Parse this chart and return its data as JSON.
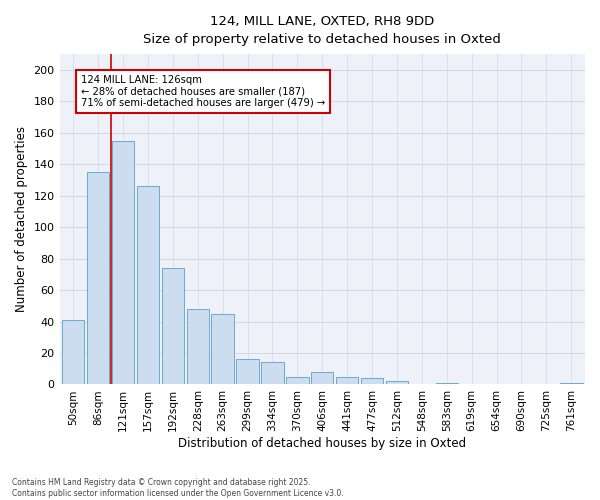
{
  "title_line1": "124, MILL LANE, OXTED, RH8 9DD",
  "title_line2": "Size of property relative to detached houses in Oxted",
  "xlabel": "Distribution of detached houses by size in Oxted",
  "ylabel": "Number of detached properties",
  "categories": [
    "50sqm",
    "86sqm",
    "121sqm",
    "157sqm",
    "192sqm",
    "228sqm",
    "263sqm",
    "299sqm",
    "334sqm",
    "370sqm",
    "406sqm",
    "441sqm",
    "477sqm",
    "512sqm",
    "548sqm",
    "583sqm",
    "619sqm",
    "654sqm",
    "690sqm",
    "725sqm",
    "761sqm"
  ],
  "values": [
    41,
    135,
    155,
    126,
    74,
    48,
    45,
    16,
    14,
    5,
    8,
    5,
    4,
    2,
    0,
    1,
    0,
    0,
    0,
    0,
    1
  ],
  "bar_color": "#ccddf0",
  "bar_edge_color": "#6aaad4",
  "vline_x": 1.5,
  "annotation_text_line1": "124 MILL LANE: 126sqm",
  "annotation_text_line2": "← 28% of detached houses are smaller (187)",
  "annotation_text_line3": "71% of semi-detached houses are larger (479) →",
  "annotation_box_facecolor": "#ffffff",
  "annotation_box_edgecolor": "#cc0000",
  "vline_color": "#cc0000",
  "ylim": [
    0,
    210
  ],
  "yticks": [
    0,
    20,
    40,
    60,
    80,
    100,
    120,
    140,
    160,
    180,
    200
  ],
  "grid_color": "#d0d8e8",
  "bg_color": "#eef2f8",
  "footer_line1": "Contains HM Land Registry data © Crown copyright and database right 2025.",
  "footer_line2": "Contains public sector information licensed under the Open Government Licence v3.0."
}
